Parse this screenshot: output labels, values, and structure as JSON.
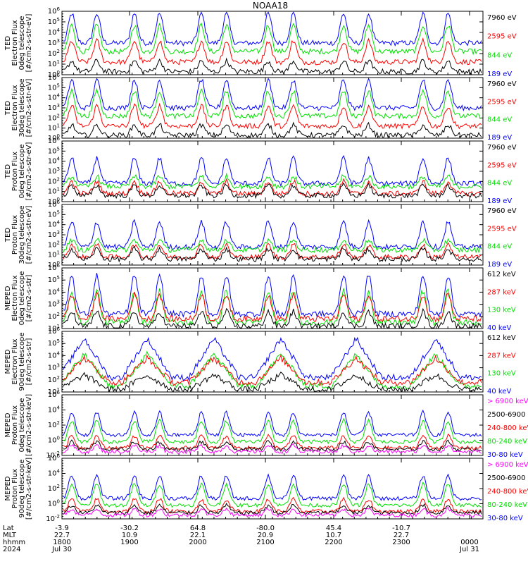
{
  "title": "NOAA18",
  "colors": {
    "blue": "#0000ff",
    "red": "#ff0000",
    "green": "#00e000",
    "black": "#000000",
    "magenta": "#ff00ff"
  },
  "time_axis": {
    "row_labels": [
      "Lat",
      "MLT",
      "hhmm",
      "2024"
    ],
    "columns": [
      {
        "lat": "-3.9",
        "mlt": "22.7",
        "hhmm": "1800",
        "date": "Jul 30"
      },
      {
        "lat": "-30.2",
        "mlt": "10.9",
        "hhmm": "1900",
        "date": ""
      },
      {
        "lat": "64.8",
        "mlt": "22.1",
        "hhmm": "2000",
        "date": ""
      },
      {
        "lat": "-80.0",
        "mlt": "20.9",
        "hhmm": "2100",
        "date": ""
      },
      {
        "lat": "45.4",
        "mlt": "10.7",
        "hhmm": "2200",
        "date": ""
      },
      {
        "lat": "-10.7",
        "mlt": "22.7",
        "hhmm": "2300",
        "date": ""
      },
      {
        "lat": "",
        "mlt": "",
        "hhmm": "0000",
        "date": "Jul 31"
      }
    ]
  },
  "chart_data": [
    {
      "type": "line",
      "ylabel_lines": [
        "TED",
        "Electron Flux",
        "0deg telescope",
        "[#/cm2-s-str-eV]"
      ],
      "ylim_exp": [
        0,
        6
      ],
      "tick_labels": [
        "10^0",
        "10^1",
        "10^2",
        "10^3",
        "10^4",
        "10^5",
        "10^6"
      ],
      "series": [
        {
          "name": "7960 eV",
          "color": "black"
        },
        {
          "name": "2595 eV",
          "color": "red"
        },
        {
          "name": "844 eV",
          "color": "green"
        },
        {
          "name": "189 eV",
          "color": "blue"
        }
      ]
    },
    {
      "type": "line",
      "ylabel_lines": [
        "TED",
        "Electron Flux",
        "30deg telescope",
        "[#/cm2-s-str-eV]"
      ],
      "ylim_exp": [
        0,
        6
      ],
      "tick_labels": [
        "10^0",
        "10^1",
        "10^2",
        "10^3",
        "10^4",
        "10^5",
        "10^6"
      ],
      "series": [
        {
          "name": "7960 eV",
          "color": "black"
        },
        {
          "name": "2595 eV",
          "color": "red"
        },
        {
          "name": "844 eV",
          "color": "green"
        },
        {
          "name": "189 eV",
          "color": "blue"
        }
      ]
    },
    {
      "type": "line",
      "ylabel_lines": [
        "TED",
        "Proton Flux",
        "0deg telescope",
        "[#/cm2-s-str-eV]"
      ],
      "ylim_exp": [
        0,
        6
      ],
      "tick_labels": [
        "10^0",
        "10^1",
        "10^2",
        "10^3",
        "10^4",
        "10^5",
        "10^6"
      ],
      "series": [
        {
          "name": "7960 eV",
          "color": "black"
        },
        {
          "name": "2595 eV",
          "color": "red"
        },
        {
          "name": "844 eV",
          "color": "green"
        },
        {
          "name": "189 eV",
          "color": "blue"
        }
      ]
    },
    {
      "type": "line",
      "ylabel_lines": [
        "TED",
        "Proton Flux",
        "30deg telescope",
        "[#/cm2-s-str-eV]"
      ],
      "ylim_exp": [
        0,
        6
      ],
      "tick_labels": [
        "10^0",
        "10^1",
        "10^2",
        "10^3",
        "10^4",
        "10^5",
        "10^6"
      ],
      "series": [
        {
          "name": "7960 eV",
          "color": "black"
        },
        {
          "name": "2595 eV",
          "color": "red"
        },
        {
          "name": "844 eV",
          "color": "green"
        },
        {
          "name": "189 eV",
          "color": "blue"
        }
      ]
    },
    {
      "type": "line",
      "ylabel_lines": [
        "MEPED",
        "Electron Flux",
        "0deg telescope",
        "[#/cm2-s-str]"
      ],
      "ylim_exp": [
        1,
        6
      ],
      "tick_labels": [
        "10^1",
        "10^2",
        "10^3",
        "10^4",
        "10^5",
        "10^6"
      ],
      "series": [
        {
          "name": "612 keV",
          "color": "black"
        },
        {
          "name": "287 keV",
          "color": "red"
        },
        {
          "name": "130 keV",
          "color": "green"
        },
        {
          "name": "40 keV",
          "color": "blue"
        }
      ]
    },
    {
      "type": "line",
      "ylabel_lines": [
        "MEPED",
        "Electron Flux",
        "90deg telescope",
        "[#/cm2-s-str]"
      ],
      "ylim_exp": [
        1,
        6
      ],
      "tick_labels": [
        "10^1",
        "10^2",
        "10^3",
        "10^4",
        "10^5",
        "10^6"
      ],
      "series": [
        {
          "name": "612 keV",
          "color": "black"
        },
        {
          "name": "287 keV",
          "color": "red"
        },
        {
          "name": "130 keV",
          "color": "green"
        },
        {
          "name": "40 keV",
          "color": "blue"
        }
      ]
    },
    {
      "type": "line",
      "ylabel_lines": [
        "MEPED",
        "Proton Flux",
        "0deg telescope",
        "[#/cm2-s-str-keV]"
      ],
      "ylim_exp": [
        -2,
        6
      ],
      "tick_labels": [
        "10^-2",
        "10^0",
        "10^2",
        "10^4",
        "10^6"
      ],
      "series": [
        {
          "name": "> 6900 keV",
          "color": "magenta"
        },
        {
          "name": "2500-6900",
          "color": "black"
        },
        {
          "name": "240-800 keV",
          "color": "red"
        },
        {
          "name": "80-240 keV",
          "color": "green"
        },
        {
          "name": "30-80 keV",
          "color": "blue"
        }
      ]
    },
    {
      "type": "line",
      "ylabel_lines": [
        "MEPED",
        "Proton Flux",
        "90deg telescope",
        "[#/cm2-s-str-keV]"
      ],
      "ylim_exp": [
        -2,
        6
      ],
      "tick_labels": [
        "10^-2",
        "10^0",
        "10^2",
        "10^4",
        "10^6"
      ],
      "series": [
        {
          "name": "> 6900 keV",
          "color": "magenta"
        },
        {
          "name": "2500-6900",
          "color": "black"
        },
        {
          "name": "240-800 keV",
          "color": "red"
        },
        {
          "name": "80-240 keV",
          "color": "green"
        },
        {
          "name": "30-80 keV",
          "color": "blue"
        }
      ]
    }
  ]
}
